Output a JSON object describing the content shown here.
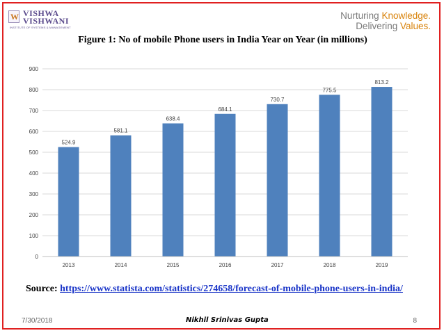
{
  "branding": {
    "logo_line1": "VISHWA",
    "logo_line2": "VISHWANI",
    "logo_sub": "INSTITUTE OF SYSTEMS & MANAGEMENT",
    "tagline_part1": "Nurturing ",
    "tagline_accent": "Knowledge.",
    "tagline_line2_part1": "Delivering ",
    "tagline_line2_accent": "Values."
  },
  "slide": {
    "title": "Figure 1:  No of mobile Phone users in India Year on Year (in millions)",
    "source_label": "Source: ",
    "source_link": "https://www.statista.com/statistics/274658/forecast-of-mobile-phone-users-in-india/",
    "date": "7/30/2018",
    "author": "Nikhil Srinivas Gupta",
    "page_number": "8"
  },
  "colors": {
    "bar": "#4f81bd",
    "border": "#e02020",
    "logo": "#5a4a8c",
    "accent": "#d8820a",
    "link": "#1a35c8"
  },
  "chart_data": {
    "type": "bar",
    "categories": [
      "2013",
      "2014",
      "2015",
      "2016",
      "2017",
      "2018",
      "2019"
    ],
    "values": [
      524.9,
      581.1,
      638.4,
      684.1,
      730.7,
      775.5,
      813.2
    ],
    "data_labels": [
      "524.9",
      "581.1",
      "638.4",
      "684.1",
      "730.7",
      "775.5",
      "813.2"
    ],
    "yticks": [
      "0",
      "100",
      "200",
      "300",
      "400",
      "500",
      "600",
      "700",
      "800",
      "900"
    ],
    "ylim": [
      0,
      900
    ],
    "grid": true,
    "legend": "none"
  }
}
